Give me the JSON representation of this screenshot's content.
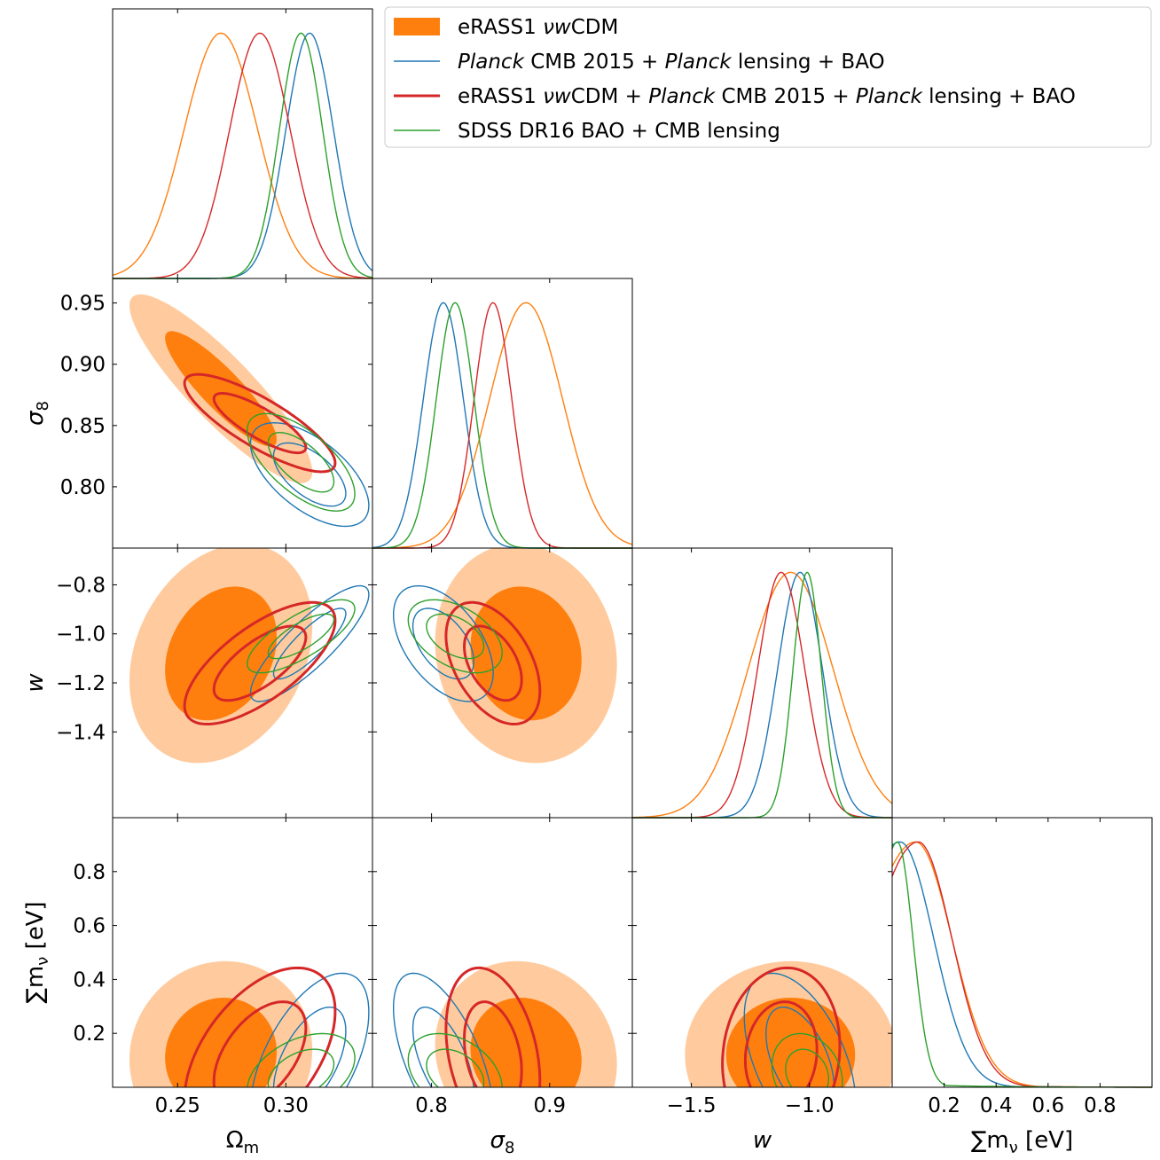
{
  "chart_data": {
    "type": "corner",
    "parameters": [
      {
        "key": "om",
        "label": "Ω",
        "label_sub": "m",
        "range": [
          0.22,
          0.34
        ],
        "ticks": [
          0.25,
          0.3
        ],
        "tick_labels": [
          "0.25",
          "0.30"
        ]
      },
      {
        "key": "s8",
        "label": "σ",
        "label_sub": "8",
        "range": [
          0.75,
          0.97
        ],
        "ticks_x": [
          0.8,
          0.9
        ],
        "tick_labels_x": [
          "0.8",
          "0.9"
        ],
        "ticks_y": [
          0.8,
          0.85,
          0.9,
          0.95
        ],
        "tick_labels_y": [
          "0.80",
          "0.85",
          "0.90",
          "0.95"
        ]
      },
      {
        "key": "w",
        "label": "w",
        "label_sub": "",
        "range": [
          -1.75,
          -0.65
        ],
        "ticks_x": [
          -1.5,
          -1.0
        ],
        "tick_labels_x": [
          "−1.5",
          "−1.0"
        ],
        "ticks_y": [
          -1.4,
          -1.2,
          -1.0,
          -0.8
        ],
        "tick_labels_y": [
          "−1.4",
          "−1.2",
          "−1.0",
          "−0.8"
        ]
      },
      {
        "key": "mnu",
        "label": "∑m",
        "label_sub": "ν",
        "label_suffix": " [eV]",
        "range": [
          0.0,
          1.0
        ],
        "ticks": [
          0.2,
          0.4,
          0.6,
          0.8
        ],
        "tick_labels": [
          "0.2",
          "0.4",
          "0.6",
          "0.8"
        ]
      }
    ],
    "series": [
      {
        "name": "eRASS1 νwCDM",
        "name_parts": [
          {
            "t": "eRASS1 ",
            "i": false
          },
          {
            "t": "νw",
            "i": true
          },
          {
            "t": "CDM",
            "i": false
          }
        ],
        "style": "filled",
        "color": "#ff7f0e",
        "color_light": "#ffcb9e",
        "mean": {
          "om": 0.27,
          "s8": 0.88,
          "w": -1.08,
          "mnu": 0.12
        },
        "sd": {
          "om": 0.017,
          "s8": 0.031,
          "w": 0.18,
          "mnu": 0.14
        },
        "mnu_peak": 0.09,
        "corr": {
          "om_s8": -0.88,
          "om_w": 0.25,
          "s8_w": -0.1,
          "om_mnu": 0.05,
          "s8_mnu": -0.1,
          "w_mnu": 0.0
        }
      },
      {
        "name": "Planck CMB 2015 + Planck lensing + BAO",
        "name_parts": [
          {
            "t": "Planck",
            "i": true
          },
          {
            "t": " CMB 2015 + ",
            "i": false
          },
          {
            "t": "Planck",
            "i": true
          },
          {
            "t": " lensing + BAO",
            "i": false
          }
        ],
        "style": "line",
        "color": "#1f77b4",
        "linewidth": 1.4,
        "mean": {
          "om": 0.311,
          "s8": 0.81,
          "w": -1.04,
          "mnu": 0.1
        },
        "sd": {
          "om": 0.011,
          "s8": 0.017,
          "w": 0.095,
          "mnu": 0.13
        },
        "mnu_peak": 0.03,
        "corr": {
          "om_s8": -0.6,
          "om_w": 0.85,
          "s8_w": -0.5,
          "om_mnu": 0.55,
          "s8_mnu": -0.6,
          "w_mnu": -0.5
        }
      },
      {
        "name": "eRASS1 νwCDM + Planck CMB 2015 + Planck lensing + BAO",
        "name_parts": [
          {
            "t": "eRASS1 ",
            "i": false
          },
          {
            "t": "νw",
            "i": true
          },
          {
            "t": "CDM + ",
            "i": false
          },
          {
            "t": "Planck",
            "i": true
          },
          {
            "t": " CMB 2015 + ",
            "i": false
          },
          {
            "t": "Planck",
            "i": true
          },
          {
            "t": " lensing + BAO",
            "i": false
          }
        ],
        "style": "line",
        "color": "#d62728",
        "linewidth": 3.0,
        "mean": {
          "om": 0.288,
          "s8": 0.852,
          "w": -1.12,
          "mnu": 0.12
        },
        "sd": {
          "om": 0.014,
          "s8": 0.016,
          "w": 0.1,
          "mnu": 0.13
        },
        "mnu_peak": 0.1,
        "corr": {
          "om_s8": -0.82,
          "om_w": 0.7,
          "s8_w": -0.45,
          "om_mnu": 0.5,
          "s8_mnu": -0.3,
          "w_mnu": 0.1
        }
      },
      {
        "name": "SDSS DR16 BAO + CMB lensing",
        "name_parts": [
          {
            "t": "SDSS DR16 BAO + CMB lensing",
            "i": false
          }
        ],
        "style": "line",
        "color": "#2ca02c",
        "linewidth": 1.4,
        "mean": {
          "om": 0.307,
          "s8": 0.82,
          "w": -1.01,
          "mnu": 0.05
        },
        "sd": {
          "om": 0.01,
          "s8": 0.016,
          "w": 0.06,
          "mnu": 0.06
        },
        "mnu_peak": 0.02,
        "corr": {
          "om_s8": -0.65,
          "om_w": 0.75,
          "s8_w": -0.45,
          "om_mnu": 0.4,
          "s8_mnu": -0.35,
          "w_mnu": -0.2
        }
      }
    ],
    "contour_levels": [
      "68%",
      "95%"
    ],
    "legend_position": "top-right"
  }
}
